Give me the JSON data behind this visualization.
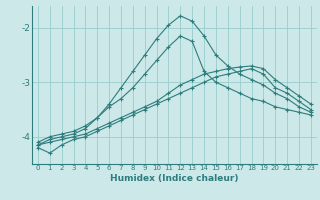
{
  "xlabel": "Humidex (Indice chaleur)",
  "bg_color": "#cce8e8",
  "grid_color": "#99cccc",
  "line_color": "#2d7d7d",
  "xlim": [
    -0.5,
    23.5
  ],
  "ylim": [
    -4.5,
    -1.6
  ],
  "yticks": [
    -4,
    -3,
    -2
  ],
  "xticks": [
    0,
    1,
    2,
    3,
    4,
    5,
    6,
    7,
    8,
    9,
    10,
    11,
    12,
    13,
    14,
    15,
    16,
    17,
    18,
    19,
    20,
    21,
    22,
    23
  ],
  "lines": [
    {
      "x": [
        0,
        1,
        2,
        3,
        4,
        5,
        6,
        7,
        8,
        9,
        10,
        11,
        12,
        13,
        14,
        15,
        16,
        17,
        18,
        19,
        20,
        21,
        22,
        23
      ],
      "y": [
        -4.2,
        -4.3,
        -4.15,
        -4.05,
        -4.0,
        -3.9,
        -3.8,
        -3.7,
        -3.6,
        -3.5,
        -3.4,
        -3.3,
        -3.2,
        -3.1,
        -3.0,
        -2.9,
        -2.85,
        -2.8,
        -2.75,
        -2.85,
        -3.1,
        -3.2,
        -3.35,
        -3.5
      ]
    },
    {
      "x": [
        0,
        1,
        2,
        3,
        4,
        5,
        6,
        7,
        8,
        9,
        10,
        11,
        12,
        13,
        14,
        15,
        16,
        17,
        18,
        19,
        20,
        21,
        22,
        23
      ],
      "y": [
        -4.15,
        -4.1,
        -4.05,
        -4.0,
        -3.95,
        -3.85,
        -3.75,
        -3.65,
        -3.55,
        -3.45,
        -3.35,
        -3.2,
        -3.05,
        -2.95,
        -2.85,
        -2.8,
        -2.75,
        -2.72,
        -2.7,
        -2.75,
        -2.95,
        -3.1,
        -3.25,
        -3.4
      ]
    },
    {
      "x": [
        0,
        1,
        2,
        3,
        4,
        5,
        6,
        7,
        8,
        9,
        10,
        11,
        12,
        13,
        14,
        15,
        16,
        17,
        18,
        19,
        20,
        21,
        22,
        23
      ],
      "y": [
        -4.1,
        -4.0,
        -3.95,
        -3.9,
        -3.8,
        -3.65,
        -3.45,
        -3.3,
        -3.1,
        -2.85,
        -2.6,
        -2.35,
        -2.15,
        -2.25,
        -2.8,
        -3.0,
        -3.1,
        -3.2,
        -3.3,
        -3.35,
        -3.45,
        -3.5,
        -3.55,
        -3.6
      ]
    },
    {
      "x": [
        0,
        1,
        2,
        3,
        4,
        5,
        6,
        7,
        8,
        9,
        10,
        11,
        12,
        13,
        14,
        15,
        16,
        17,
        18,
        19,
        20,
        21,
        22,
        23
      ],
      "y": [
        -4.15,
        -4.05,
        -4.0,
        -3.95,
        -3.85,
        -3.65,
        -3.4,
        -3.1,
        -2.8,
        -2.5,
        -2.2,
        -1.95,
        -1.78,
        -1.88,
        -2.15,
        -2.5,
        -2.7,
        -2.85,
        -2.95,
        -3.05,
        -3.2,
        -3.3,
        -3.45,
        -3.55
      ]
    }
  ]
}
